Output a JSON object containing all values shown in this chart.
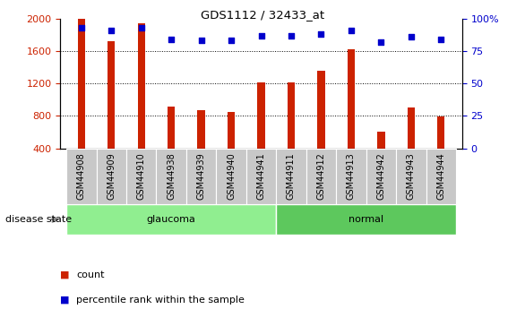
{
  "title": "GDS1112 / 32433_at",
  "samples": [
    "GSM44908",
    "GSM44909",
    "GSM44910",
    "GSM44938",
    "GSM44939",
    "GSM44940",
    "GSM44941",
    "GSM44911",
    "GSM44912",
    "GSM44913",
    "GSM44942",
    "GSM44943",
    "GSM44944"
  ],
  "counts": [
    2000,
    1720,
    1940,
    920,
    870,
    850,
    1210,
    1210,
    1360,
    1620,
    610,
    900,
    790
  ],
  "percentiles": [
    93,
    91,
    93,
    84,
    83,
    83,
    87,
    87,
    88,
    91,
    82,
    86,
    84
  ],
  "groups": [
    "glaucoma",
    "glaucoma",
    "glaucoma",
    "glaucoma",
    "glaucoma",
    "glaucoma",
    "glaucoma",
    "normal",
    "normal",
    "normal",
    "normal",
    "normal",
    "normal"
  ],
  "glaucoma_color": "#90EE90",
  "normal_color": "#5DC85D",
  "bar_color": "#CC2200",
  "dot_color": "#0000CC",
  "ylim_left": [
    400,
    2000
  ],
  "ylim_right": [
    0,
    100
  ],
  "yticks_left": [
    400,
    800,
    1200,
    1600,
    2000
  ],
  "yticks_right": [
    0,
    25,
    50,
    75,
    100
  ],
  "background_color": "#ffffff",
  "plot_bg_color": "#ffffff",
  "xtick_box_color": "#c8c8c8",
  "legend_count_label": "count",
  "legend_pct_label": "percentile rank within the sample",
  "disease_state_label": "disease state"
}
